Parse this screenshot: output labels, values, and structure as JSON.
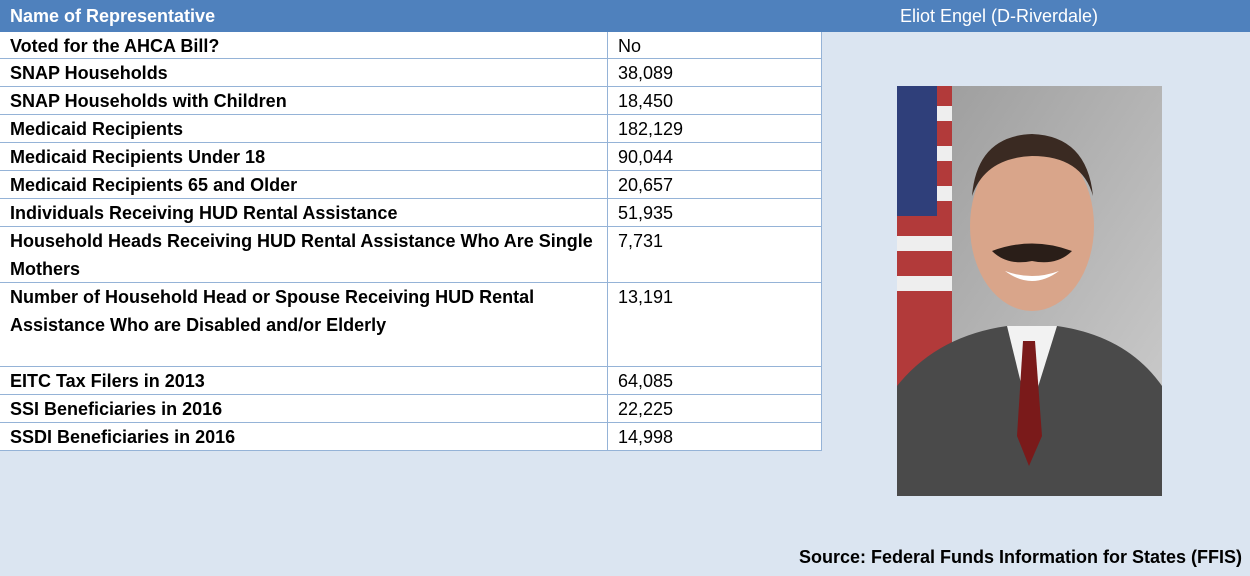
{
  "header": {
    "label": "Name of Representative",
    "name": "Eliot Engel (D-Riverdale)"
  },
  "table": {
    "rows": [
      [
        "Voted for the AHCA Bill?",
        "No"
      ],
      [
        "SNAP Households",
        "38,089"
      ],
      [
        "SNAP Households with Children",
        "18,450"
      ],
      [
        "Medicaid Recipients",
        "182,129"
      ],
      [
        "Medicaid Recipients Under 18",
        "90,044"
      ],
      [
        "Medicaid Recipients 65 and Older",
        "20,657"
      ],
      [
        "Individuals Receiving HUD Rental Assistance",
        "51,935"
      ],
      [
        "Household Heads Receiving HUD Rental Assistance Who Are Single Mothers",
        "7,731"
      ],
      [
        "Number of Household Head or Spouse Receiving HUD Rental Assistance Who are Disabled and/or Elderly",
        "13,191"
      ],
      [
        "EITC Tax Filers in 2013",
        "64,085"
      ],
      [
        "SSI Beneficiaries in 2016",
        "22,225"
      ],
      [
        "SSDI Beneficiaries in 2016",
        "14,998"
      ]
    ]
  },
  "source": "Source: Federal Funds Information for States (FFIS)"
}
